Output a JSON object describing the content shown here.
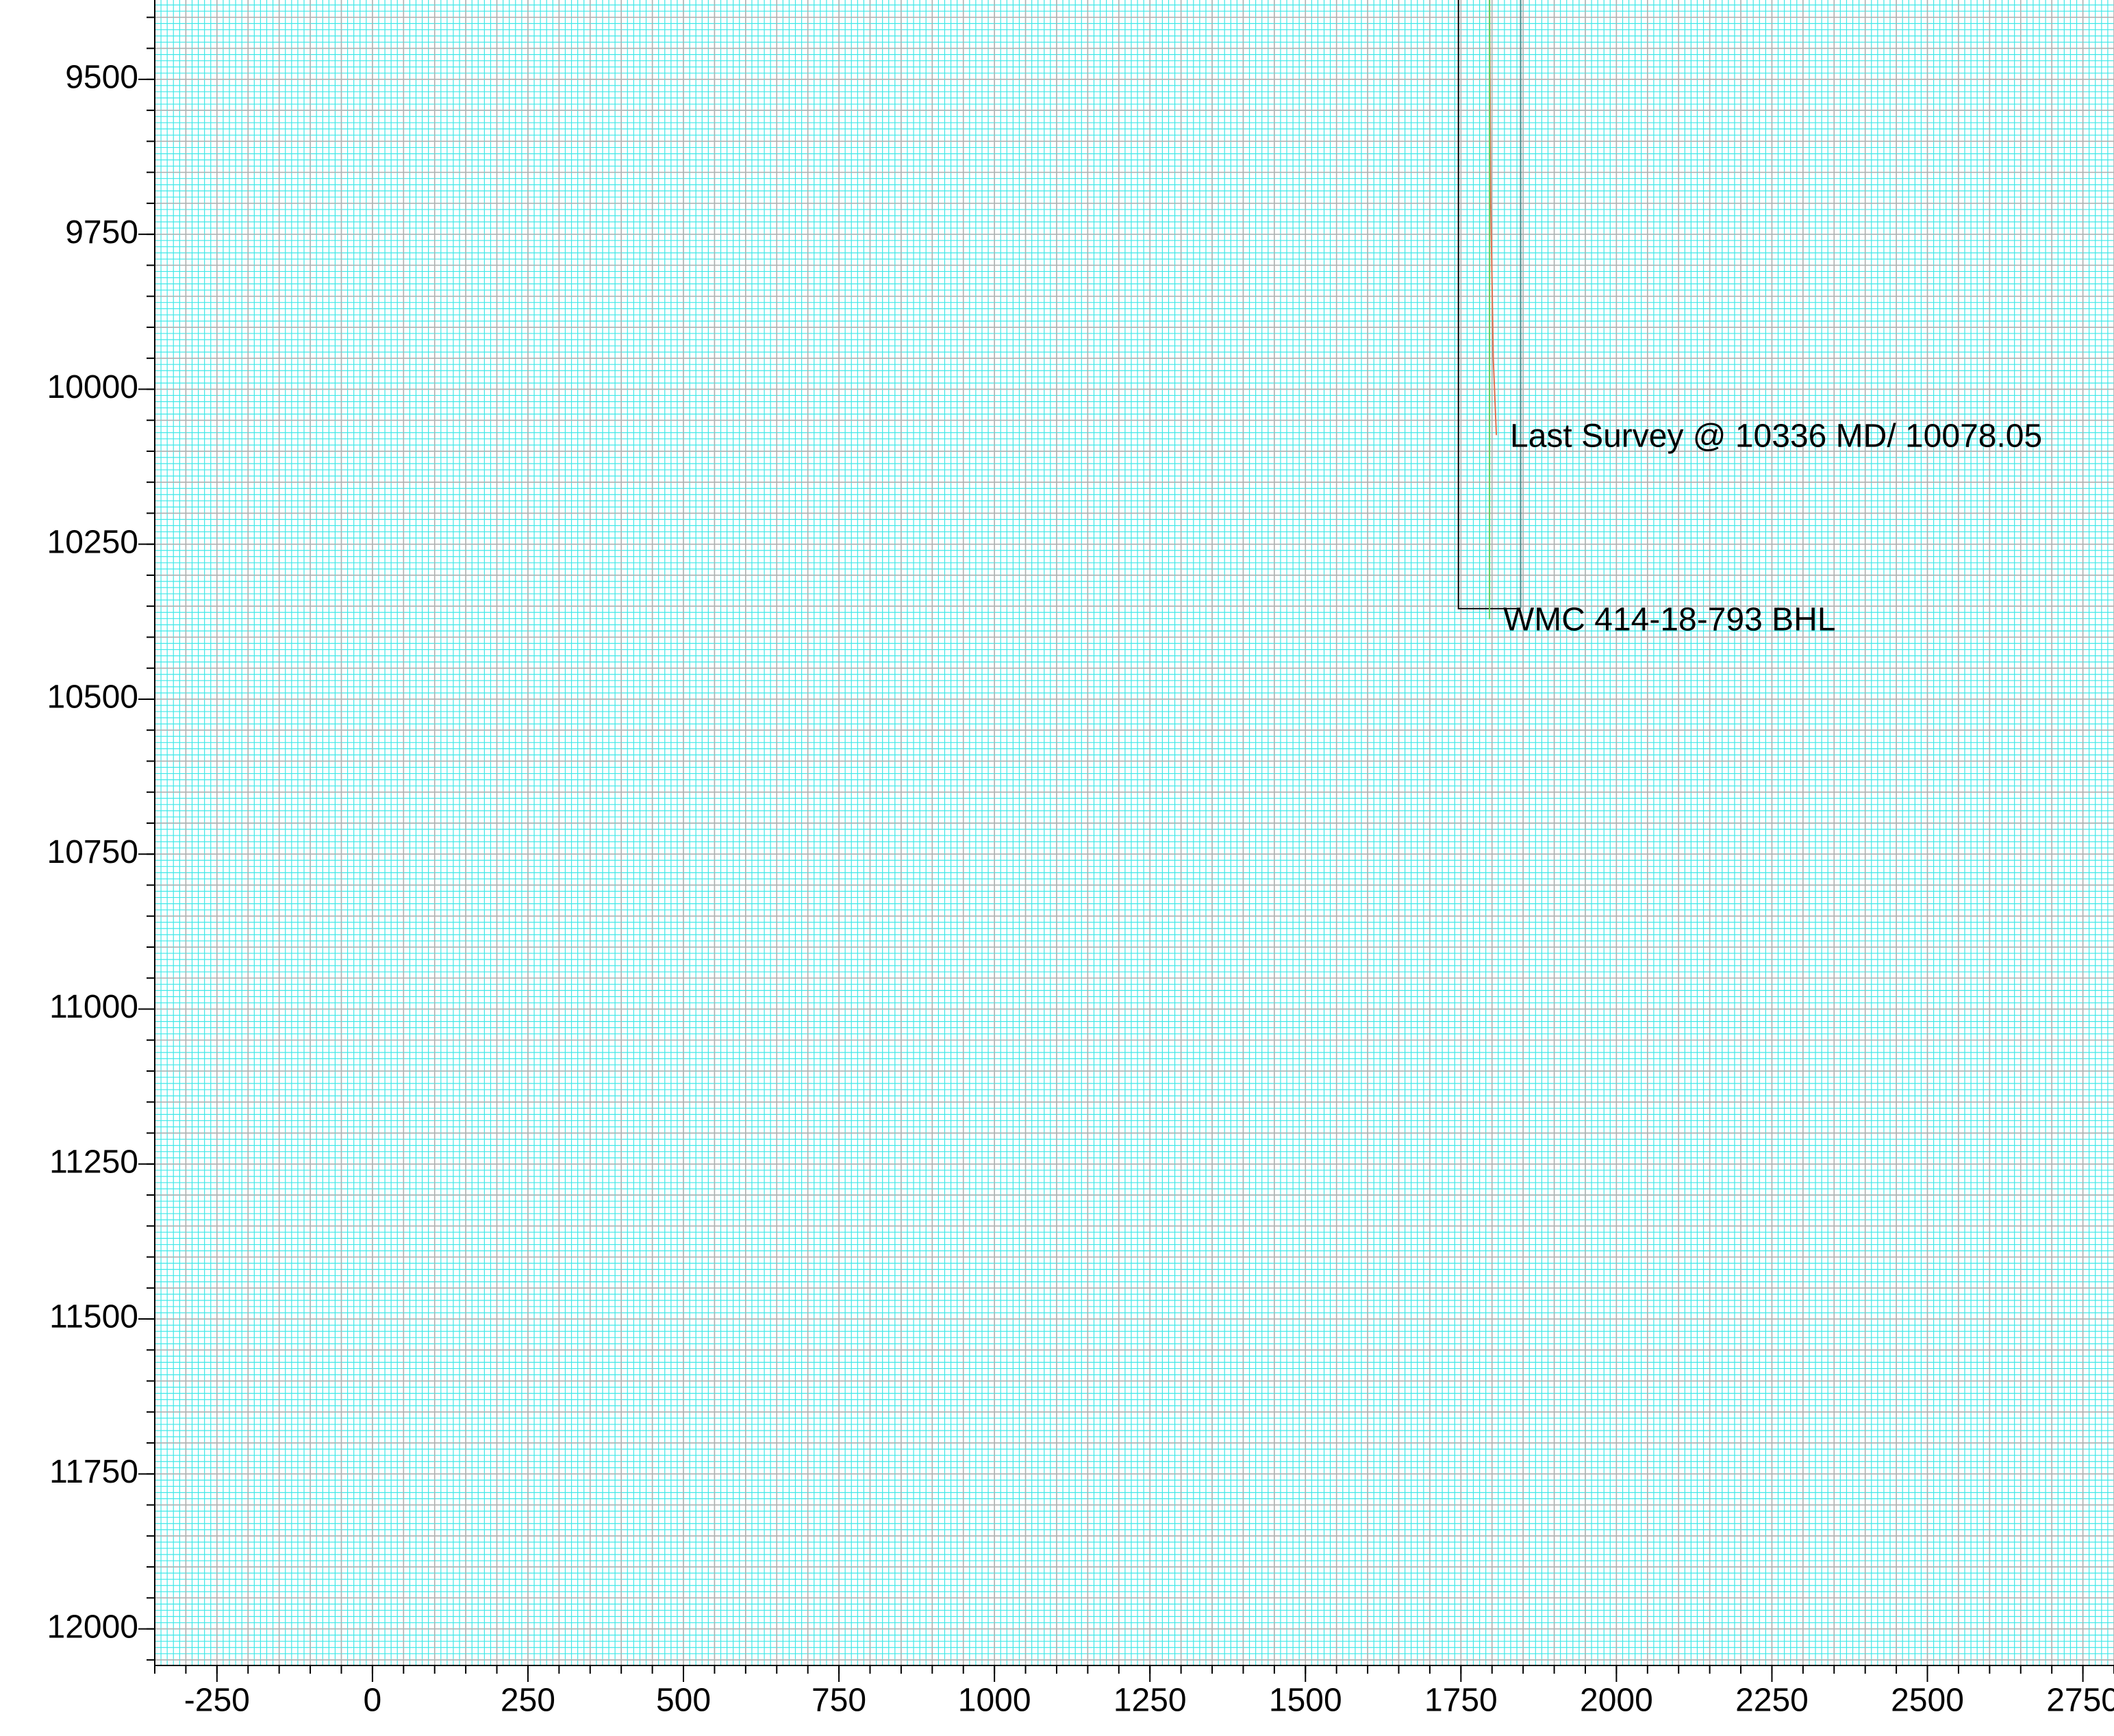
{
  "chart_data": {
    "type": "line",
    "xlim": [
      -350,
      2800
    ],
    "ylim": [
      9372,
      12059
    ],
    "y_inverted": true,
    "xticks": [
      -250,
      0,
      250,
      500,
      750,
      1000,
      1250,
      1500,
      1750,
      2000,
      2250,
      2500,
      2750
    ],
    "yticks": [
      9500,
      9750,
      10000,
      10250,
      10500,
      10750,
      11000,
      11250,
      11500,
      11750,
      12000
    ],
    "grid": true,
    "major_grid_step": 50,
    "minor_grid_step": 10,
    "major_grid_color": "#b0b0b0",
    "minor_grid_color": "#40e8e8",
    "series": [
      {
        "color": "#e07050",
        "x": [
          1796,
          1798,
          1802,
          1807
        ],
        "y": [
          9372,
          9700,
          9950,
          10074
        ]
      },
      {
        "color": "#000000",
        "x": [
          1746,
          1746,
          1846
        ],
        "y": [
          9372,
          10354,
          10354
        ]
      },
      {
        "color": "#4a8a8a",
        "x": [
          1846,
          1846
        ],
        "y": [
          9372,
          10354
        ]
      },
      {
        "color": "#60d060",
        "x": [
          1796,
          1796
        ],
        "y": [
          9372,
          10371
        ]
      }
    ],
    "annotations": [
      "Last Survey @ 10336 MD/ 10078.05",
      "WMC 414-18-793 BHL"
    ]
  }
}
